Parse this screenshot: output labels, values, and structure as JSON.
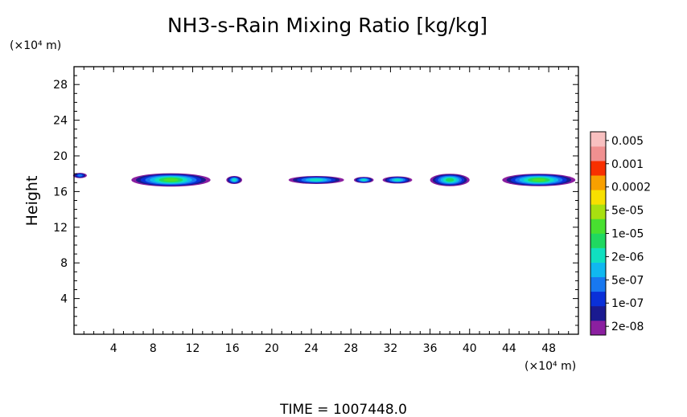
{
  "chart_data": {
    "type": "heatmap",
    "title": "NH3-s-Rain Mixing Ratio [kg/kg]",
    "ylabel": "Height",
    "y_unit": "(×10⁴ m)",
    "x_unit": "(×10⁴ m)",
    "footer": "TIME = 1007448.0",
    "xlim": [
      0,
      51
    ],
    "ylim": [
      0,
      30
    ],
    "x_ticks": [
      4,
      8,
      12,
      16,
      20,
      24,
      28,
      32,
      36,
      40,
      44,
      48
    ],
    "x_tick_labels": [
      "4",
      "8",
      "12",
      "16",
      "20",
      "24",
      "28",
      "32",
      "36",
      "40",
      "44",
      "48"
    ],
    "y_ticks": [
      4,
      8,
      12,
      16,
      20,
      24,
      28
    ],
    "y_tick_labels": [
      "4",
      "8",
      "12",
      "16",
      "20",
      "24",
      "28"
    ],
    "colorbar": {
      "labels": [
        "2e-08",
        "1e-07",
        "5e-07",
        "2e-06",
        "1e-05",
        "5e-05",
        "0.0002",
        "0.001",
        "0.005"
      ],
      "colors": [
        "#8b1fa0",
        "#1a1a90",
        "#0a30d8",
        "#1878f0",
        "#10b8f0",
        "#10e0c0",
        "#20d860",
        "#48e030",
        "#a8e010",
        "#f8e000",
        "#f8a000",
        "#f83000",
        "#f09090",
        "#f8c0c0"
      ]
    },
    "cloud_patches": [
      {
        "x_center": 0.6,
        "y_center": 17.8,
        "half_width": 0.7,
        "half_height": 0.3,
        "level": 3
      },
      {
        "x_center": 9.8,
        "y_center": 17.3,
        "half_width": 4.0,
        "half_height": 0.75,
        "level": 7
      },
      {
        "x_center": 16.2,
        "y_center": 17.3,
        "half_width": 0.8,
        "half_height": 0.45,
        "level": 5
      },
      {
        "x_center": 24.5,
        "y_center": 17.3,
        "half_width": 2.8,
        "half_height": 0.45,
        "level": 5
      },
      {
        "x_center": 29.3,
        "y_center": 17.3,
        "half_width": 1.0,
        "half_height": 0.35,
        "level": 5
      },
      {
        "x_center": 32.7,
        "y_center": 17.3,
        "half_width": 1.5,
        "half_height": 0.4,
        "level": 5
      },
      {
        "x_center": 38.0,
        "y_center": 17.3,
        "half_width": 2.0,
        "half_height": 0.7,
        "level": 6
      },
      {
        "x_center": 47.0,
        "y_center": 17.3,
        "half_width": 3.7,
        "half_height": 0.7,
        "level": 7
      }
    ]
  }
}
